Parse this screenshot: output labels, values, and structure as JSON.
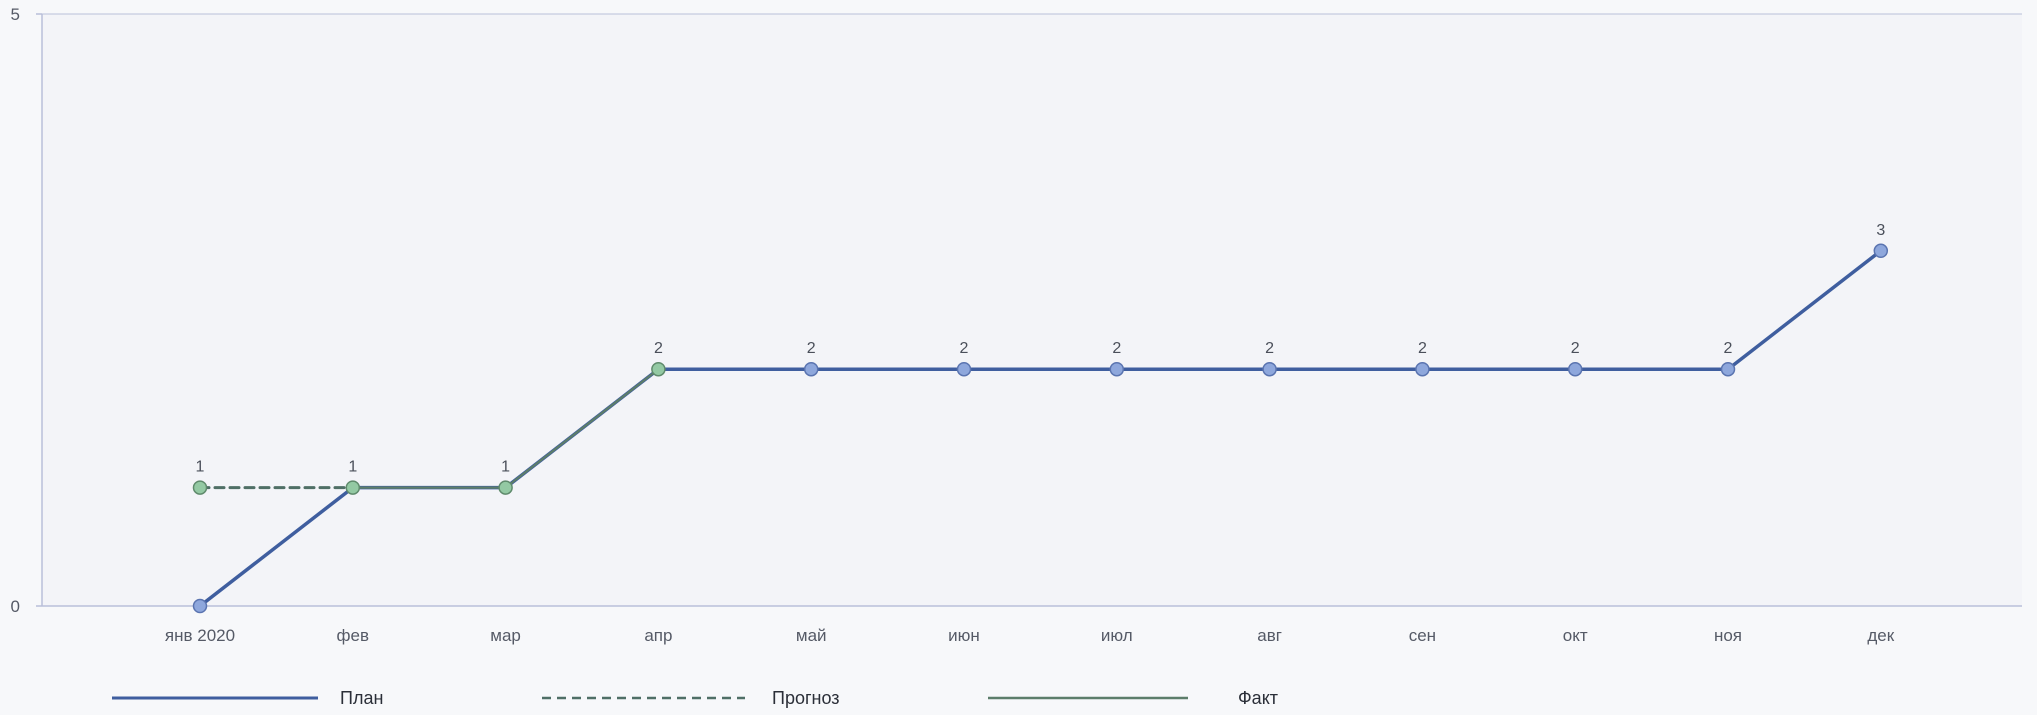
{
  "chart_data": {
    "type": "line",
    "categories": [
      "янв 2020",
      "фев",
      "мар",
      "апр",
      "май",
      "июн",
      "июл",
      "авг",
      "сен",
      "окт",
      "ноя",
      "дек"
    ],
    "ylim": [
      0,
      5
    ],
    "y_ticks": [
      "0",
      "5"
    ],
    "grid": false,
    "legend_position": "bottom",
    "colors": {
      "plan": "#3f5e9f",
      "forecast": "#4f6f66",
      "fact": "#5c7d6a",
      "plan_marker": "#8ea7dc",
      "fact_marker": "#93c9a3",
      "axis": "#b9bfd9"
    },
    "series": [
      {
        "key": "plan",
        "name": "План",
        "style": "solid",
        "values": [
          0,
          1,
          1,
          2,
          2,
          2,
          2,
          2,
          2,
          2,
          2,
          3
        ]
      },
      {
        "key": "forecast",
        "name": "Прогноз",
        "style": "dashed",
        "values": [
          1,
          1,
          null,
          null,
          null,
          null,
          null,
          null,
          null,
          null,
          null,
          null
        ]
      },
      {
        "key": "fact",
        "name": "Факт",
        "style": "solid",
        "values": [
          null,
          1,
          1,
          2,
          null,
          null,
          null,
          null,
          null,
          null,
          null,
          null
        ]
      }
    ],
    "data_labels": [
      "1",
      "1",
      "1",
      "2",
      "2",
      "2",
      "2",
      "2",
      "2",
      "2",
      "2",
      "3"
    ],
    "data_label_values": [
      1,
      1,
      1,
      2,
      2,
      2,
      2,
      2,
      2,
      2,
      2,
      3
    ]
  }
}
